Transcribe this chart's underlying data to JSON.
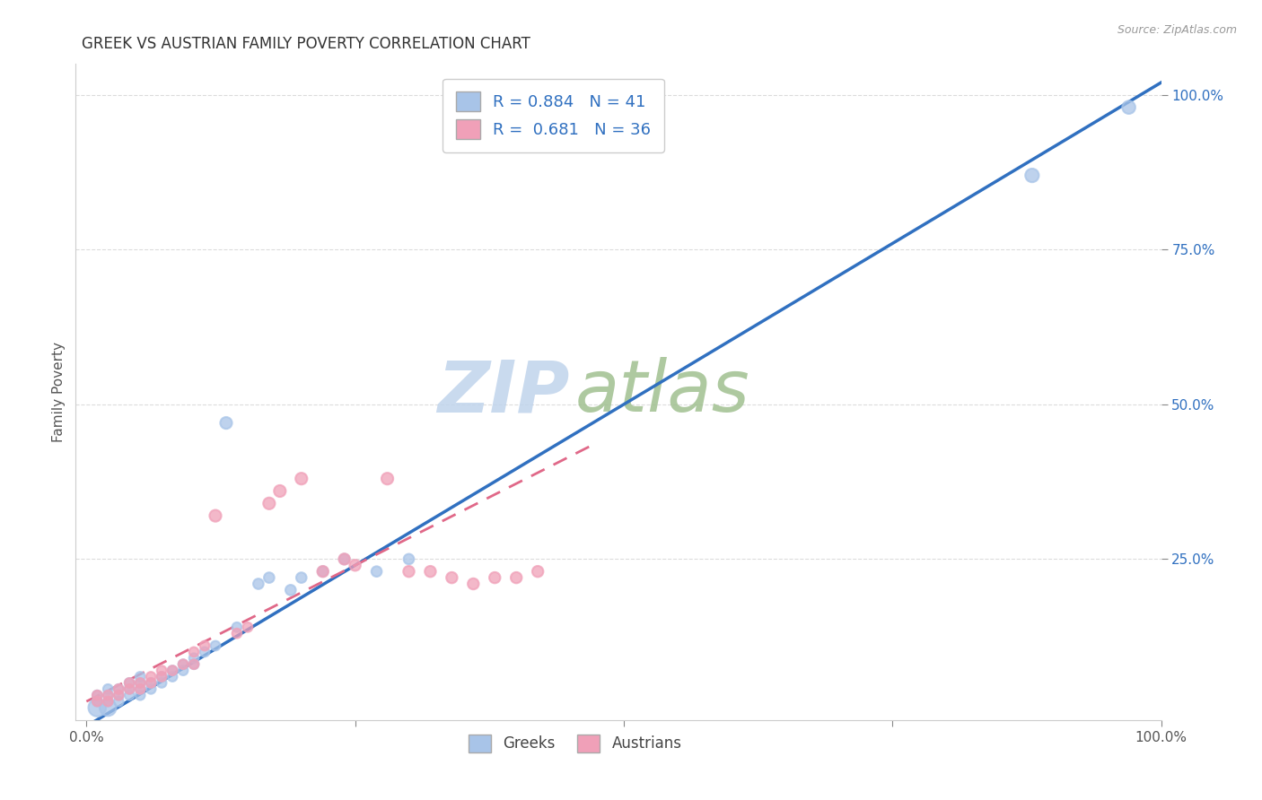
{
  "title": "GREEK VS AUSTRIAN FAMILY POVERTY CORRELATION CHART",
  "source": "Source: ZipAtlas.com",
  "ylabel": "Family Poverty",
  "yticks": [
    "100.0%",
    "75.0%",
    "50.0%",
    "25.0%"
  ],
  "ytick_vals": [
    1.0,
    0.75,
    0.5,
    0.25
  ],
  "xtick_labels": [
    "0.0%",
    "",
    "",
    "",
    "100.0%"
  ],
  "xtick_vals": [
    0.0,
    0.25,
    0.5,
    0.75,
    1.0
  ],
  "greek_r": 0.884,
  "greek_n": 41,
  "austrian_r": 0.681,
  "austrian_n": 36,
  "greek_color": "#a8c4e8",
  "austrian_color": "#f0a0b8",
  "greek_line_color": "#3070c0",
  "austrian_line_color": "#e06888",
  "watermark_zip_color": "#c0d4ec",
  "watermark_atlas_color": "#a0c090",
  "bg_color": "#ffffff",
  "grid_color": "#d8d8d8",
  "title_color": "#333333",
  "ytick_color": "#3070c0",
  "source_color": "#999999",
  "legend_text_color": "#3070c0",
  "greek_slope": 1.04,
  "greek_intercept": -0.02,
  "austrian_slope": 0.88,
  "austrian_intercept": 0.02,
  "austrian_line_xmax": 0.47,
  "greek_scatter_x": [
    0.01,
    0.01,
    0.01,
    0.02,
    0.02,
    0.02,
    0.02,
    0.03,
    0.03,
    0.03,
    0.04,
    0.04,
    0.04,
    0.05,
    0.05,
    0.05,
    0.05,
    0.06,
    0.06,
    0.07,
    0.07,
    0.08,
    0.08,
    0.09,
    0.09,
    0.1,
    0.1,
    0.11,
    0.12,
    0.13,
    0.14,
    0.16,
    0.17,
    0.19,
    0.2,
    0.22,
    0.24,
    0.27,
    0.3,
    0.88,
    0.97
  ],
  "greek_scatter_y": [
    0.01,
    0.02,
    0.03,
    0.01,
    0.02,
    0.03,
    0.04,
    0.02,
    0.03,
    0.04,
    0.03,
    0.04,
    0.05,
    0.03,
    0.04,
    0.05,
    0.06,
    0.04,
    0.05,
    0.05,
    0.06,
    0.06,
    0.07,
    0.07,
    0.08,
    0.08,
    0.09,
    0.1,
    0.11,
    0.47,
    0.14,
    0.21,
    0.22,
    0.2,
    0.22,
    0.23,
    0.25,
    0.23,
    0.25,
    0.87,
    0.98
  ],
  "greek_scatter_size": [
    200,
    60,
    60,
    180,
    60,
    60,
    60,
    60,
    60,
    60,
    60,
    60,
    60,
    60,
    60,
    60,
    60,
    60,
    60,
    60,
    60,
    60,
    60,
    60,
    60,
    60,
    60,
    60,
    60,
    90,
    60,
    70,
    70,
    70,
    70,
    70,
    70,
    70,
    70,
    120,
    110
  ],
  "austrian_scatter_x": [
    0.01,
    0.01,
    0.02,
    0.02,
    0.03,
    0.03,
    0.04,
    0.04,
    0.05,
    0.05,
    0.06,
    0.06,
    0.07,
    0.07,
    0.08,
    0.09,
    0.1,
    0.1,
    0.11,
    0.12,
    0.14,
    0.15,
    0.17,
    0.18,
    0.2,
    0.22,
    0.24,
    0.25,
    0.28,
    0.3,
    0.32,
    0.34,
    0.36,
    0.38,
    0.4,
    0.42
  ],
  "austrian_scatter_y": [
    0.02,
    0.03,
    0.02,
    0.03,
    0.03,
    0.04,
    0.04,
    0.05,
    0.04,
    0.05,
    0.05,
    0.06,
    0.06,
    0.07,
    0.07,
    0.08,
    0.08,
    0.1,
    0.11,
    0.32,
    0.13,
    0.14,
    0.34,
    0.36,
    0.38,
    0.23,
    0.25,
    0.24,
    0.38,
    0.23,
    0.23,
    0.22,
    0.21,
    0.22,
    0.22,
    0.23
  ],
  "austrian_scatter_size": [
    60,
    60,
    60,
    60,
    60,
    60,
    60,
    60,
    60,
    60,
    60,
    60,
    60,
    60,
    60,
    60,
    60,
    60,
    60,
    90,
    60,
    60,
    90,
    90,
    90,
    80,
    80,
    80,
    90,
    80,
    80,
    80,
    80,
    80,
    80,
    80
  ]
}
